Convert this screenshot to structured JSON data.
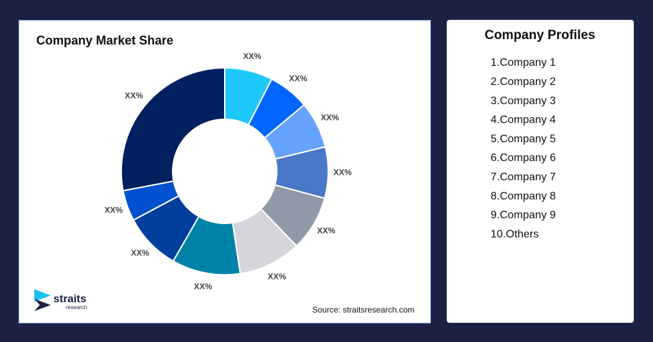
{
  "chart_data": {
    "type": "donut",
    "title": "Company Market Share",
    "categories": [
      "1.Company 1",
      "2.Company 2",
      "3.Company 3",
      "4.Company 4",
      "5.Company 5",
      "6.Company 6",
      "7.Company 7",
      "8.Company 8",
      "9.Company 9",
      "10.Others"
    ],
    "values": [
      7.5,
      6.4,
      7.3,
      8,
      8.6,
      9.8,
      10.7,
      8.9,
      4.8,
      28
    ],
    "value_labels": [
      "XX%",
      "XX%",
      "XX%",
      "XX%",
      "XX%",
      "XX%",
      "XX%",
      "XX%",
      "XX%",
      "XX%"
    ],
    "colors": [
      "#1ec8fa",
      "#0066ff",
      "#66a3ff",
      "#4a78c8",
      "#9099a8",
      "#d4d6dc",
      "#0083a8",
      "#003f9e",
      "#0050cf",
      "#00205f"
    ],
    "legend_title": "Company Profiles",
    "source": "Source: straitsresearch.com",
    "logo": {
      "name": "straits",
      "tagline": "research"
    }
  }
}
